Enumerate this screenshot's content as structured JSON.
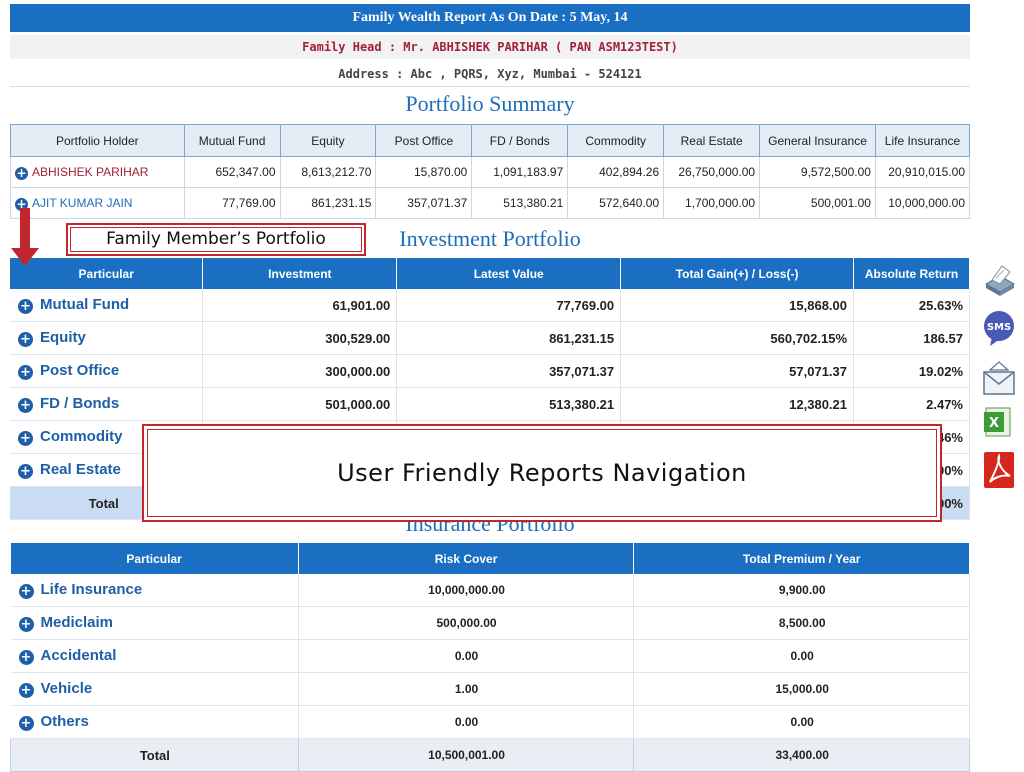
{
  "header": {
    "title": "Family Wealth Report As On Date : 5 May, 14",
    "family_head": "Family Head : Mr. ABHISHEK PARIHAR ( PAN ASM123TEST)",
    "address": "Address : Abc , PQRS, Xyz, Mumbai - 524121"
  },
  "portfolio_summary": {
    "title": "Portfolio Summary",
    "columns": [
      "Portfolio Holder",
      "Mutual Fund",
      "Equity",
      "Post Office",
      "FD / Bonds",
      "Commodity",
      "Real Estate",
      "General Insurance",
      "Life Insurance"
    ],
    "rows": [
      {
        "holder": "ABHISHEK PARIHAR",
        "values": [
          "652,347.00",
          "8,613,212.70",
          "15,870.00",
          "1,091,183.97",
          "402,894.26",
          "26,750,000.00",
          "9,572,500.00",
          "20,910,015.00"
        ]
      },
      {
        "holder": "AJIT KUMAR JAIN",
        "values": [
          "77,769.00",
          "861,231.15",
          "357,071.37",
          "513,380.21",
          "572,640.00",
          "1,700,000.00",
          "500,001.00",
          "10,000,000.00"
        ]
      }
    ]
  },
  "callouts": {
    "family_member": "Family Member’s Portfolio",
    "navigation": "User Friendly Reports Navigation"
  },
  "investment_portfolio": {
    "title": "Investment Portfolio",
    "columns": [
      "Particular",
      "Investment",
      "Latest Value",
      "Total Gain(+) / Loss(-)",
      "Absolute Return"
    ],
    "rows": [
      {
        "particular": "Mutual Fund",
        "investment": "61,901.00",
        "latest": "77,769.00",
        "gain": "15,868.00",
        "ret": "25.63%"
      },
      {
        "particular": "Equity",
        "investment": "300,529.00",
        "latest": "861,231.15",
        "gain": "560,702.15%",
        "ret": "186.57"
      },
      {
        "particular": "Post Office",
        "investment": "300,000.00",
        "latest": "357,071.37",
        "gain": "57,071.37",
        "ret": "19.02%"
      },
      {
        "particular": "FD / Bonds",
        "investment": "501,000.00",
        "latest": "513,380.21",
        "gain": "12,380.21",
        "ret": "2.47%"
      },
      {
        "particular": "Commodity",
        "investment": "",
        "latest": "",
        "gain": "",
        "ret": ".46%"
      },
      {
        "particular": "Real Estate",
        "investment": "",
        "latest": "",
        "gain": "",
        "ret": ".00%"
      }
    ],
    "total": {
      "label": "Total",
      "ret": ".00%"
    }
  },
  "insurance_portfolio": {
    "title": "Insurance Portfolio",
    "columns": [
      "Particular",
      "Risk Cover",
      "Total Premium / Year"
    ],
    "rows": [
      {
        "particular": "Life Insurance",
        "risk": "10,000,000.00",
        "premium": "9,900.00"
      },
      {
        "particular": "Mediclaim",
        "risk": "500,000.00",
        "premium": "8,500.00"
      },
      {
        "particular": "Accidental",
        "risk": "0.00",
        "premium": "0.00"
      },
      {
        "particular": "Vehicle",
        "risk": "1.00",
        "premium": "15,000.00"
      },
      {
        "particular": "Others",
        "risk": "0.00",
        "premium": "0.00"
      }
    ],
    "total": {
      "label": "Total",
      "risk": "10,500,001.00",
      "premium": "33,400.00"
    }
  },
  "side_icons": [
    {
      "name": "print-icon"
    },
    {
      "name": "sms-icon",
      "label": "SMS"
    },
    {
      "name": "email-icon"
    },
    {
      "name": "excel-icon",
      "label": "X"
    },
    {
      "name": "pdf-icon"
    }
  ],
  "colors": {
    "header_blue": "#1a6fc2",
    "accent_red": "#c0272d",
    "link_blue": "#1f5fa8"
  }
}
